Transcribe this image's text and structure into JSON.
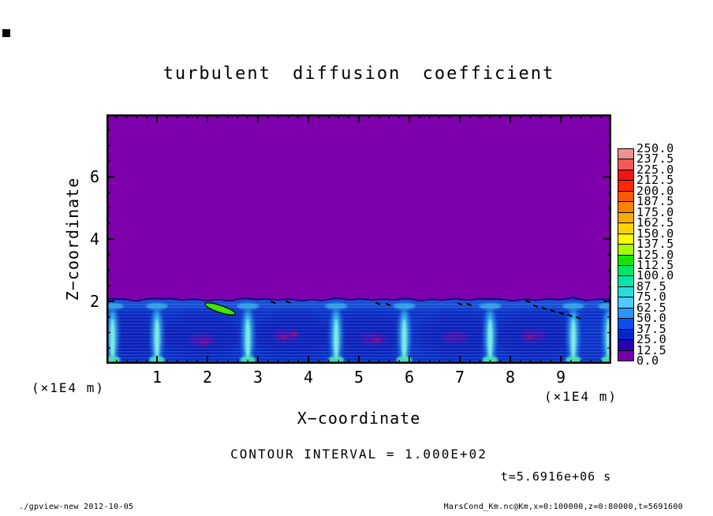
{
  "title": "turbulent diffusion coefficient",
  "axes": {
    "x": {
      "label": "X−coordinate",
      "unit": "(×1E4 m)",
      "min": 0,
      "max": 10,
      "major_ticks": [
        1,
        2,
        3,
        4,
        5,
        6,
        7,
        8,
        9
      ],
      "tick_labels": [
        "1",
        "2",
        "3",
        "4",
        "5",
        "6",
        "7",
        "8",
        "9"
      ],
      "minor_step": 0.2
    },
    "z": {
      "label": "Z−coordinate",
      "unit": "(×1E4 m)",
      "min": 0,
      "max": 8,
      "major_ticks": [
        2,
        4,
        6
      ],
      "tick_labels": [
        "2",
        "4",
        "6"
      ],
      "minor_step": 0.5
    }
  },
  "annotations": {
    "contour_interval": "CONTOUR INTERVAL = 1.000E+02",
    "time": "t=5.6916e+06 s"
  },
  "footer": {
    "left": "./gpview-new  2012-10-05",
    "right": "MarsCond_Km.nc@Km,x=0:100000,z=0:80000,t=5691600"
  },
  "colorbar": {
    "min": 0,
    "max": 250,
    "step": 12.5,
    "labels_top_to_bottom": [
      "250.0",
      "237.5",
      "225.0",
      "212.5",
      "200.0",
      "187.5",
      "175.0",
      "162.5",
      "150.0",
      "137.5",
      "125.0",
      "112.5",
      "100.0",
      "87.5",
      "75.0",
      "62.5",
      "50.0",
      "37.5",
      "25.0",
      "12.5",
      "0.0"
    ],
    "colors_low_to_high": [
      "#7300A8",
      "#2800B4",
      "#0028C8",
      "#0A50F0",
      "#2896FF",
      "#50C8FF",
      "#28DCDC",
      "#00E6AA",
      "#00E664",
      "#14E600",
      "#AAFA00",
      "#FAFA00",
      "#FFD200",
      "#FFAA00",
      "#FF8200",
      "#FF5A00",
      "#FF2800",
      "#F51414",
      "#F55A5A",
      "#F09090"
    ]
  },
  "chart_data": {
    "type": "heatmap",
    "title": "turbulent diffusion coefficient",
    "xlabel": "X−coordinate (×1E4 m)",
    "ylabel": "Z−coordinate (×1E4 m)",
    "xlim": [
      0,
      10
    ],
    "ylim": [
      0,
      8
    ],
    "value_range": [
      0,
      250
    ],
    "contour_interval": 100,
    "time_label": "t=5.6916e+06 s",
    "legend_position": "right-colorbar",
    "field_summary": "Diffusion coefficient ≈0 (purple) everywhere above z≈2e4 m; convective boundary layer below z≈2 filled with values ~12–100 (dark blue eddies to cyan updraft plumes); one small green patch >100 outlined by the 100-contour near x≈2–2.5, z≈1.6–1.9; faint magenta near-zero patches inside eddy cores.",
    "background_value": 0,
    "boundary_layer_top_z": 2.05,
    "field_colors": {
      "background_purple": "#7E00AC",
      "layer_base_blue": "#0C32C8",
      "eddy_dark_blue": "#0A1EB4",
      "updraft_cyan": "#38BEF0",
      "updraft_core": "#8CF0E1",
      "updraft_fan": "#38AEE8",
      "bottom_glow": "#46E6B4",
      "interface_navy": "#10006E",
      "green_feature": "#3CE600",
      "magenta_patch": "#7A00A8",
      "crimson_speck": "#C80046"
    },
    "updrafts_x": [
      0.12,
      1.0,
      2.8,
      4.55,
      5.9,
      7.6,
      9.25,
      9.95
    ],
    "eddy_cores_x": [
      0.45,
      1.9,
      3.7,
      5.2,
      6.95,
      8.5
    ],
    "magenta_patches": [
      {
        "x": 1.9,
        "z": 0.75
      },
      {
        "x": 3.55,
        "z": 0.9
      },
      {
        "x": 5.3,
        "z": 0.8
      },
      {
        "x": 6.9,
        "z": 0.85
      },
      {
        "x": 8.45,
        "z": 0.9
      }
    ],
    "crimson_specks": [
      {
        "x": 1.95,
        "z": 0.7
      },
      {
        "x": 3.5,
        "z": 0.85
      },
      {
        "x": 3.72,
        "z": 0.95
      },
      {
        "x": 5.35,
        "z": 0.75
      },
      {
        "x": 8.4,
        "z": 0.85
      }
    ],
    "green_feature": {
      "x1": 1.95,
      "z1": 1.92,
      "x2": 2.55,
      "z2": 1.6
    },
    "contour_dashes": [
      {
        "x1": 8.5,
        "z1": 1.85,
        "x2": 9.35,
        "z2": 1.47,
        "n": 6
      },
      {
        "x1": 5.38,
        "z1": 1.93,
        "x2": 5.58,
        "z2": 1.9,
        "n": 2
      },
      {
        "x1": 3.3,
        "z1": 1.97,
        "x2": 3.6,
        "z2": 1.98,
        "n": 2
      },
      {
        "x1": 7.0,
        "z1": 1.92,
        "x2": 7.18,
        "z2": 1.9,
        "n": 2
      },
      {
        "x1": 8.35,
        "z1": 2.0,
        "x2": 8.42,
        "z2": 2.0,
        "n": 1
      }
    ]
  }
}
